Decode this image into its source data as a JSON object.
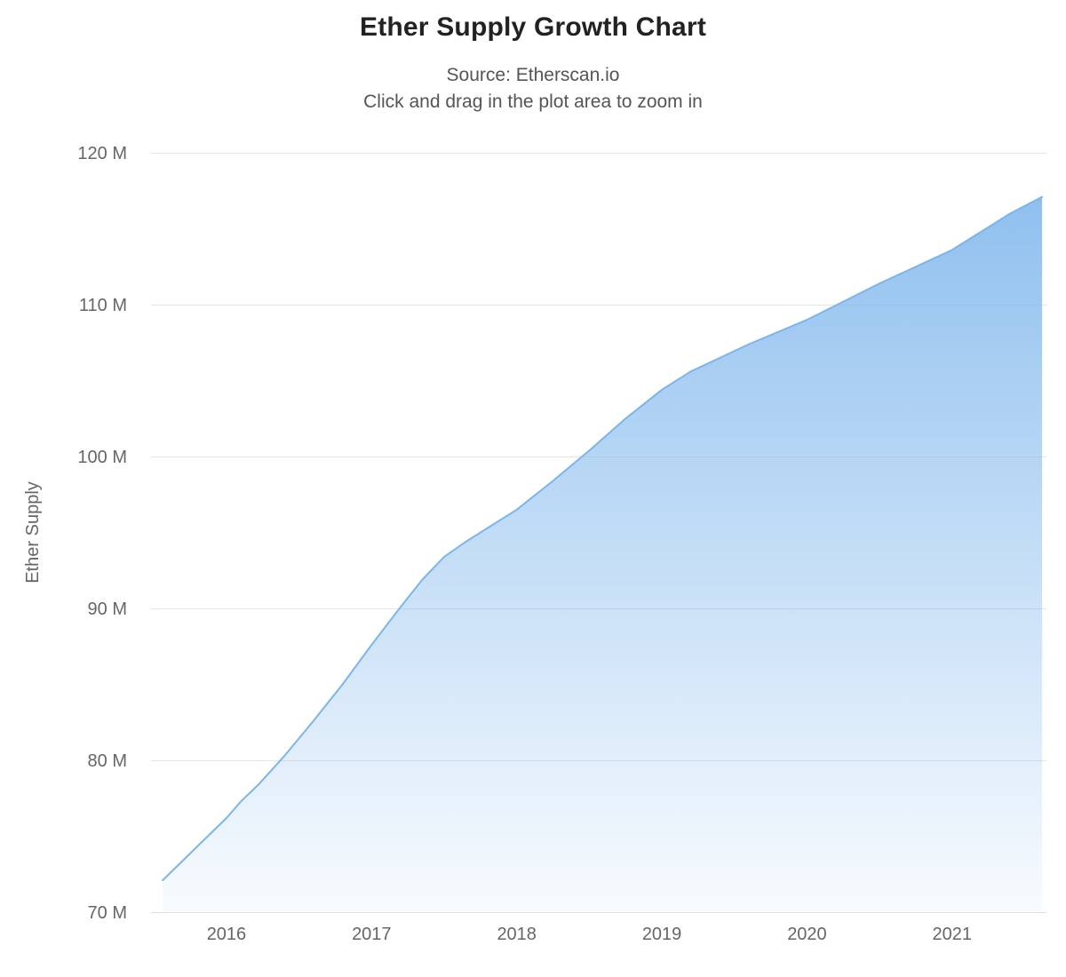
{
  "chart_data": {
    "type": "area",
    "title": "Ether Supply Growth Chart",
    "subtitle_lines": [
      "Source: Etherscan.io",
      "Click and drag in the plot area to zoom in"
    ],
    "xlabel": "",
    "ylabel": "Ether Supply",
    "x": [
      2015.56,
      2015.7,
      2015.85,
      2016.0,
      2016.1,
      2016.22,
      2016.4,
      2016.6,
      2016.8,
      2017.0,
      2017.2,
      2017.35,
      2017.5,
      2017.65,
      2017.8,
      2018.0,
      2018.25,
      2018.5,
      2018.75,
      2019.0,
      2019.2,
      2019.4,
      2019.6,
      2019.8,
      2020.0,
      2020.25,
      2020.5,
      2020.75,
      2021.0,
      2021.2,
      2021.4,
      2021.62
    ],
    "y": [
      72.1,
      73.4,
      74.8,
      76.2,
      77.3,
      78.4,
      80.3,
      82.6,
      85.0,
      87.6,
      90.1,
      91.9,
      93.4,
      94.4,
      95.3,
      96.5,
      98.4,
      100.4,
      102.5,
      104.4,
      105.6,
      106.5,
      107.4,
      108.2,
      109.0,
      110.2,
      111.4,
      112.5,
      113.6,
      114.8,
      116.0,
      117.1
    ],
    "y_unit": "M",
    "xlim": [
      2015.48,
      2021.65
    ],
    "ylim": [
      70,
      120
    ],
    "xticks": {
      "values": [
        2016,
        2017,
        2018,
        2019,
        2020,
        2021
      ],
      "labels": [
        "2016",
        "2017",
        "2018",
        "2019",
        "2020",
        "2021"
      ]
    },
    "yticks": {
      "values": [
        70,
        80,
        90,
        100,
        110,
        120
      ],
      "labels": [
        "70 M",
        "80 M",
        "90 M",
        "100 M",
        "110 M",
        "120 M"
      ]
    },
    "grid": "horizontal",
    "legend": "none",
    "colors": {
      "line": "#7cb5ec",
      "area_fill_top": "rgba(124,181,236,0.85)",
      "area_fill_bottom": "rgba(124,181,236,0.05)",
      "gridline": "#e6e6e6",
      "axis_line": "#e0e0e0",
      "tick_text": "#666666",
      "axis_title_text": "#666666",
      "title_text": "#222222",
      "subtitle_text": "#555555"
    }
  }
}
